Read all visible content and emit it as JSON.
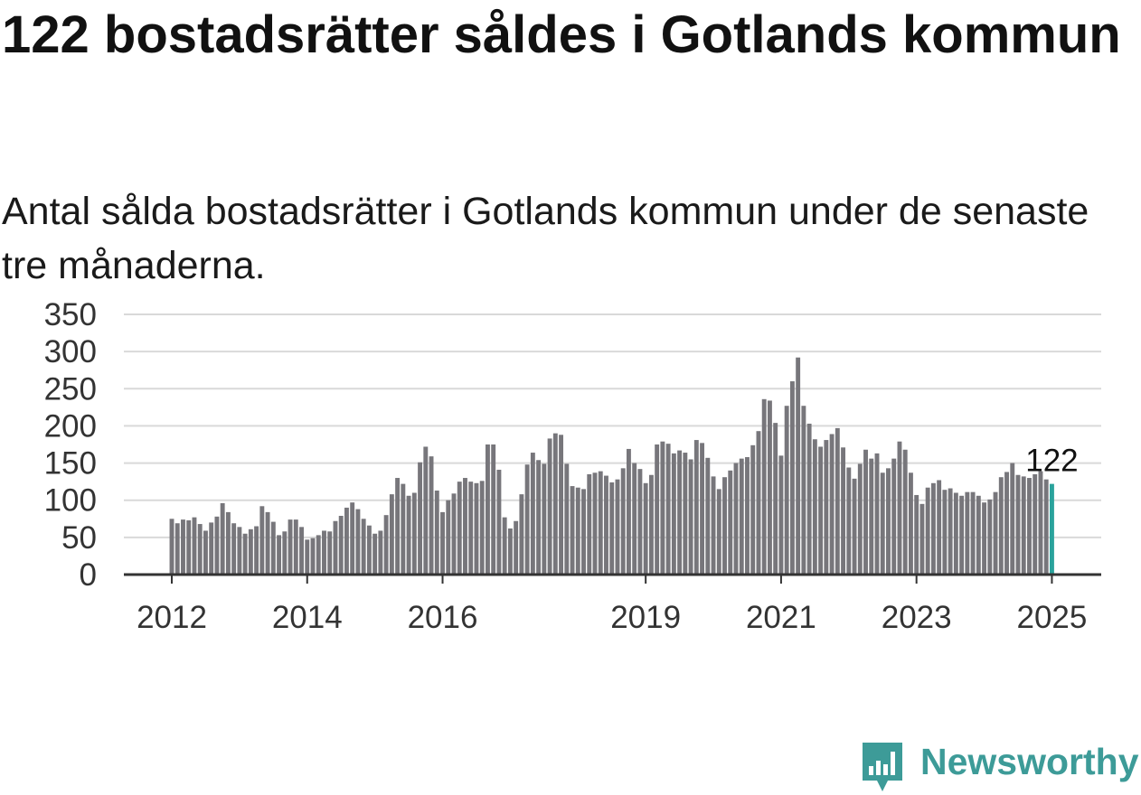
{
  "title": "122 bostadsrätter såldes i Gotlands kommun",
  "subtitle": "Antal sålda bostadsrätter i Gotlands kommun under de senaste tre månaderna.",
  "brand": {
    "name": "Newsworthy",
    "icon": "newsworthy-logo-icon"
  },
  "colors": {
    "bar": "#77767b",
    "highlight": "#2aa39c",
    "grid": "#d9d9d9",
    "axis": "#333333",
    "text": "#333333"
  },
  "chart_data": {
    "type": "bar",
    "grid": true,
    "ylim": [
      0,
      350
    ],
    "yticks": [
      0,
      50,
      100,
      150,
      200,
      250,
      300,
      350
    ],
    "xticks": [
      {
        "label": "2012",
        "index": 0
      },
      {
        "label": "2014",
        "index": 24
      },
      {
        "label": "2016",
        "index": 48
      },
      {
        "label": "2019",
        "index": 84
      },
      {
        "label": "2021",
        "index": 108
      },
      {
        "label": "2023",
        "index": 132
      },
      {
        "label": "2025",
        "index": 156
      }
    ],
    "highlight_label": "122",
    "values": [
      75,
      69,
      74,
      73,
      77,
      68,
      59,
      70,
      78,
      96,
      84,
      69,
      64,
      55,
      61,
      65,
      92,
      84,
      71,
      53,
      58,
      74,
      74,
      64,
      47,
      49,
      53,
      59,
      58,
      72,
      79,
      90,
      97,
      88,
      75,
      66,
      55,
      59,
      80,
      108,
      130,
      122,
      106,
      110,
      151,
      172,
      159,
      113,
      84,
      100,
      109,
      125,
      130,
      125,
      123,
      126,
      175,
      175,
      141,
      77,
      62,
      72,
      108,
      148,
      164,
      154,
      149,
      183,
      190,
      188,
      149,
      119,
      117,
      115,
      135,
      137,
      139,
      133,
      124,
      128,
      143,
      169,
      150,
      142,
      123,
      134,
      175,
      179,
      176,
      163,
      167,
      164,
      155,
      181,
      177,
      157,
      132,
      115,
      131,
      140,
      150,
      156,
      158,
      174,
      193,
      236,
      234,
      204,
      160,
      227,
      260,
      292,
      227,
      203,
      182,
      172,
      181,
      189,
      197,
      171,
      144,
      129,
      149,
      168,
      156,
      163,
      137,
      143,
      156,
      179,
      168,
      137,
      107,
      95,
      117,
      123,
      127,
      114,
      116,
      110,
      106,
      111,
      111,
      106,
      97,
      101,
      111,
      131,
      138,
      150,
      134,
      132,
      130,
      135,
      139,
      128,
      122
    ]
  }
}
